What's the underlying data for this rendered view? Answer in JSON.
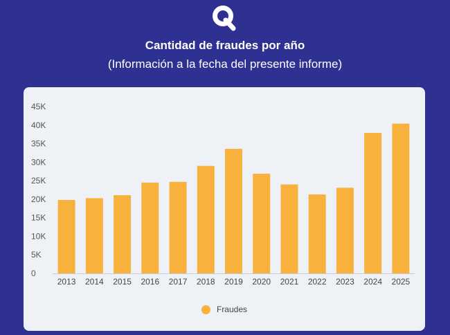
{
  "header": {
    "title": "Cantidad de fraudes por año",
    "subtitle": "(Información a la fecha del presente informe)"
  },
  "colors": {
    "background": "#2e3192",
    "card": "#eef1f6",
    "bar": "#f9b13d",
    "logo": "#ffffff"
  },
  "icons": {
    "logo": "brand-q-logo"
  },
  "chart_data": {
    "type": "bar",
    "title": "Cantidad de fraudes por año",
    "subtitle": "(Información a la fecha del presente informe)",
    "xlabel": "",
    "ylabel": "",
    "categories": [
      "2013",
      "2014",
      "2015",
      "2016",
      "2017",
      "2018",
      "2019",
      "2020",
      "2021",
      "2022",
      "2023",
      "2024",
      "2025"
    ],
    "series": [
      {
        "name": "Fraudes",
        "values": [
          19800,
          20300,
          21100,
          24500,
          24700,
          29000,
          33600,
          26900,
          24000,
          21300,
          23100,
          37900,
          40400
        ]
      }
    ],
    "ylim": [
      0,
      45000
    ],
    "yticks": [
      0,
      5000,
      10000,
      15000,
      20000,
      25000,
      30000,
      35000,
      40000,
      45000
    ],
    "ytick_labels": [
      "0",
      "5K",
      "10K",
      "15K",
      "20K",
      "25K",
      "30K",
      "35K",
      "40K",
      "45K"
    ],
    "grid": false,
    "legend": {
      "position": "bottom",
      "entries": [
        "Fraudes"
      ]
    }
  }
}
